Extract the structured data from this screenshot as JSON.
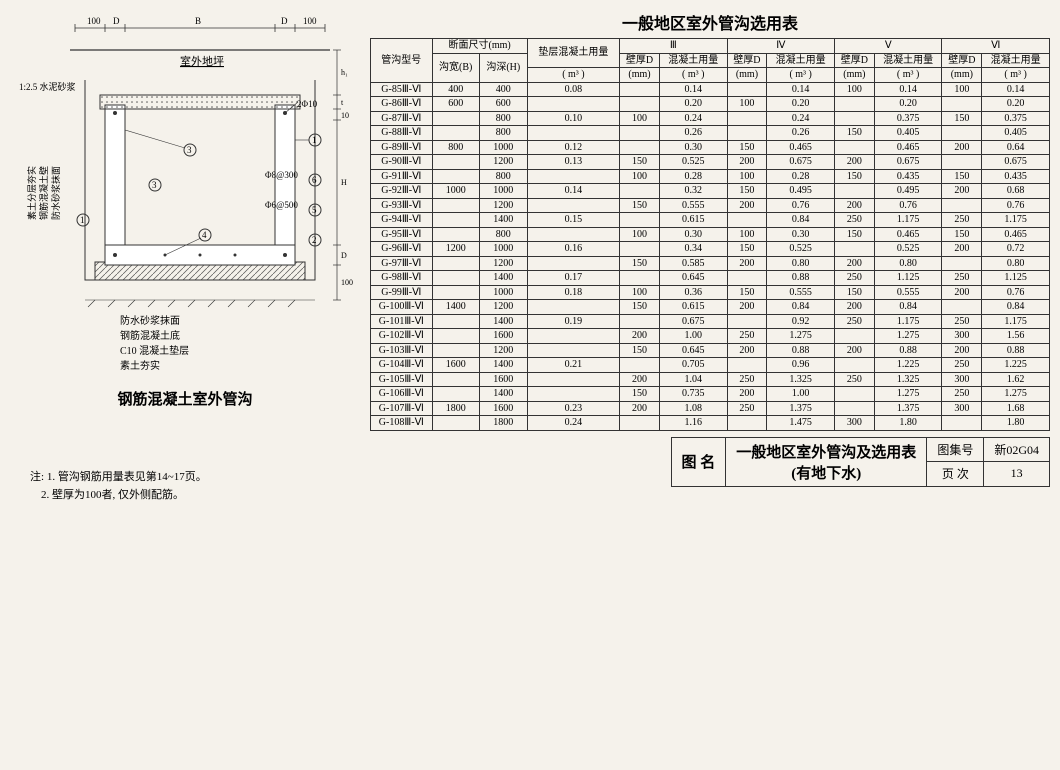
{
  "page_title": "一般地区室外管沟选用表",
  "diagram_caption": "钢筋混凝土室外管沟",
  "diagram_labels": {
    "outdoor_ground": "室外地坪",
    "mortar": "1:2.5\n水泥砂浆",
    "side_layers": [
      "素土分层夯实",
      "钢筋混凝土壁",
      "防水砂浆抹面"
    ],
    "top_rebar": "2Φ10",
    "wall_rebar": "Φ8@300",
    "floor_rebar": "Φ6@500",
    "dims_top": [
      "100",
      "D",
      "B",
      "D",
      "100"
    ],
    "dims_right": [
      "h₁",
      "t",
      "10",
      "H",
      "D",
      "100"
    ]
  },
  "legend_items": [
    "防水砂浆抹面",
    "钢筋混凝土底",
    "C10 混凝土垫层",
    "素土夯实"
  ],
  "notes_label": "注:",
  "notes": [
    "1. 管沟钢筋用量表见第14~17页。",
    "2. 壁厚为100者, 仅外侧配筋。"
  ],
  "table_headers": {
    "model": "管沟型号",
    "section": "断面尺寸(mm)",
    "width": "沟宽(B)",
    "depth": "沟深(H)",
    "cushion": "垫层混凝土用量",
    "cushion_unit": "( m³ )",
    "groups": [
      "Ⅲ",
      "Ⅳ",
      "Ⅴ",
      "Ⅵ"
    ],
    "wall_d": "壁厚D",
    "wall_d_unit": "(mm)",
    "conc": "混凝土用量",
    "conc_unit": "( m³ )"
  },
  "rows": [
    {
      "m": "G-85Ⅲ-Ⅵ",
      "B": "400",
      "H": "400",
      "c": "0.08",
      "d3": "",
      "v3": "0.14",
      "d4": "",
      "v4": "0.14",
      "d5": "100",
      "v5": "0.14",
      "d6": "100",
      "v6": "0.14"
    },
    {
      "m": "G-86Ⅲ-Ⅵ",
      "B": "600",
      "H": "600",
      "c": "",
      "v3": "0.20",
      "d4": "100",
      "v4": "0.20",
      "v5": "0.20",
      "v6": "0.20"
    },
    {
      "m": "G-87Ⅲ-Ⅵ",
      "B": "",
      "H": "800",
      "c": "0.10",
      "d3": "100",
      "v3": "0.24",
      "v4": "0.24",
      "d5": "",
      "v5": "0.375",
      "d6": "150",
      "v6": "0.375"
    },
    {
      "m": "G-88Ⅲ-Ⅵ",
      "B": "",
      "H": "800",
      "c": "",
      "v3": "0.26",
      "v4": "0.26",
      "d5": "150",
      "v5": "0.405",
      "v6": "0.405"
    },
    {
      "m": "G-89Ⅲ-Ⅵ",
      "B": "800",
      "H": "1000",
      "c": "0.12",
      "v3": "0.30",
      "d4": "150",
      "v4": "0.465",
      "v5": "0.465",
      "d6": "200",
      "v6": "0.64"
    },
    {
      "m": "G-90Ⅲ-Ⅵ",
      "B": "",
      "H": "1200",
      "c": "0.13",
      "d3": "150",
      "v3": "0.525",
      "d4": "200",
      "v4": "0.675",
      "d5": "200",
      "v5": "0.675",
      "v6": "0.675"
    },
    {
      "m": "G-91Ⅲ-Ⅵ",
      "B": "",
      "H": "800",
      "c": "",
      "d3": "100",
      "v3": "0.28",
      "d4": "100",
      "v4": "0.28",
      "d5": "150",
      "v5": "0.435",
      "d6": "150",
      "v6": "0.435"
    },
    {
      "m": "G-92Ⅲ-Ⅵ",
      "B": "1000",
      "H": "1000",
      "c": "0.14",
      "v3": "0.32",
      "d4": "150",
      "v4": "0.495",
      "v5": "0.495",
      "d6": "200",
      "v6": "0.68"
    },
    {
      "m": "G-93Ⅲ-Ⅵ",
      "B": "",
      "H": "1200",
      "c": "",
      "d3": "150",
      "v3": "0.555",
      "d4": "200",
      "v4": "0.76",
      "d5": "200",
      "v5": "0.76",
      "v6": "0.76"
    },
    {
      "m": "G-94Ⅲ-Ⅵ",
      "B": "",
      "H": "1400",
      "c": "0.15",
      "v3": "0.615",
      "v4": "0.84",
      "d5": "250",
      "v5": "1.175",
      "d6": "250",
      "v6": "1.175"
    },
    {
      "m": "G-95Ⅲ-Ⅵ",
      "B": "",
      "H": "800",
      "c": "",
      "d3": "100",
      "v3": "0.30",
      "d4": "100",
      "v4": "0.30",
      "d5": "150",
      "v5": "0.465",
      "d6": "150",
      "v6": "0.465"
    },
    {
      "m": "G-96Ⅲ-Ⅵ",
      "B": "1200",
      "H": "1000",
      "c": "0.16",
      "v3": "0.34",
      "d4": "150",
      "v4": "0.525",
      "v5": "0.525",
      "d6": "200",
      "v6": "0.72"
    },
    {
      "m": "G-97Ⅲ-Ⅵ",
      "B": "",
      "H": "1200",
      "c": "",
      "d3": "150",
      "v3": "0.585",
      "d4": "200",
      "v4": "0.80",
      "d5": "200",
      "v5": "0.80",
      "v6": "0.80"
    },
    {
      "m": "G-98Ⅲ-Ⅵ",
      "B": "",
      "H": "1400",
      "c": "0.17",
      "v3": "0.645",
      "v4": "0.88",
      "d5": "250",
      "v5": "1.125",
      "d6": "250",
      "v6": "1.125"
    },
    {
      "m": "G-99Ⅲ-Ⅵ",
      "B": "",
      "H": "1000",
      "c": "0.18",
      "d3": "100",
      "v3": "0.36",
      "d4": "150",
      "v4": "0.555",
      "d5": "150",
      "v5": "0.555",
      "d6": "200",
      "v6": "0.76"
    },
    {
      "m": "G-100Ⅲ-Ⅵ",
      "B": "1400",
      "H": "1200",
      "c": "",
      "d3": "150",
      "v3": "0.615",
      "d4": "200",
      "v4": "0.84",
      "d5": "200",
      "v5": "0.84",
      "v6": "0.84"
    },
    {
      "m": "G-101Ⅲ-Ⅵ",
      "B": "",
      "H": "1400",
      "c": "0.19",
      "v3": "0.675",
      "v4": "0.92",
      "d5": "250",
      "v5": "1.175",
      "d6": "250",
      "v6": "1.175"
    },
    {
      "m": "G-102Ⅲ-Ⅵ",
      "B": "",
      "H": "1600",
      "c": "",
      "d3": "200",
      "v3": "1.00",
      "d4": "250",
      "v4": "1.275",
      "v5": "1.275",
      "d6": "300",
      "v6": "1.56"
    },
    {
      "m": "G-103Ⅲ-Ⅵ",
      "B": "",
      "H": "1200",
      "c": "",
      "d3": "150",
      "v3": "0.645",
      "d4": "200",
      "v4": "0.88",
      "d5": "200",
      "v5": "0.88",
      "d6": "200",
      "v6": "0.88"
    },
    {
      "m": "G-104Ⅲ-Ⅵ",
      "B": "1600",
      "H": "1400",
      "c": "0.21",
      "v3": "0.705",
      "v4": "0.96",
      "d5": "",
      "v5": "1.225",
      "d6": "250",
      "v6": "1.225"
    },
    {
      "m": "G-105Ⅲ-Ⅵ",
      "B": "",
      "H": "1600",
      "c": "",
      "d3": "200",
      "v3": "1.04",
      "d4": "250",
      "v4": "1.325",
      "d5": "250",
      "v5": "1.325",
      "d6": "300",
      "v6": "1.62"
    },
    {
      "m": "G-106Ⅲ-Ⅵ",
      "B": "",
      "H": "1400",
      "c": "",
      "d3": "150",
      "v3": "0.735",
      "d4": "200",
      "v4": "1.00",
      "v5": "1.275",
      "d6": "250",
      "v6": "1.275"
    },
    {
      "m": "G-107Ⅲ-Ⅵ",
      "B": "1800",
      "H": "1600",
      "c": "0.23",
      "d3": "200",
      "v3": "1.08",
      "d4": "250",
      "v4": "1.375",
      "v5": "1.375",
      "d6": "300",
      "v6": "1.68"
    },
    {
      "m": "G-108Ⅲ-Ⅵ",
      "B": "",
      "H": "1800",
      "c": "0.24",
      "v3": "1.16",
      "v4": "1.475",
      "d5": "300",
      "v5": "1.80",
      "v6": "1.80"
    }
  ],
  "footer": {
    "fig_label": "图 名",
    "fig_title_l1": "一般地区室外管沟及选用表",
    "fig_title_l2": "(有地下水)",
    "set_label": "图集号",
    "set_val": "新02G04",
    "page_label": "页 次",
    "page_val": "13"
  }
}
